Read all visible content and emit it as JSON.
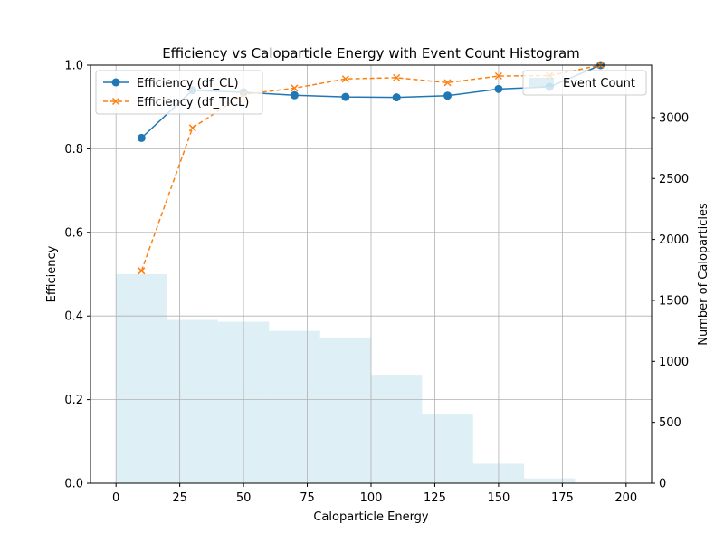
{
  "chart_data": {
    "type": "line",
    "title": "Efficiency vs Caloparticle Energy with Event Count Histogram",
    "xlabel": "Caloparticle Energy",
    "ylabel": "Efficiency",
    "y2label": "Number of Caloparticles",
    "xlim": [
      -10,
      210
    ],
    "ylim": [
      0,
      1.0
    ],
    "y2lim": [
      0,
      3430
    ],
    "grid": true,
    "x_ticks": [
      0,
      25,
      50,
      75,
      100,
      125,
      150,
      175,
      200
    ],
    "y_ticks": [
      0.0,
      0.2,
      0.4,
      0.6,
      0.8,
      1.0
    ],
    "y2_ticks": [
      0,
      500,
      1000,
      1500,
      2000,
      2500,
      3000
    ],
    "legend_left": "top-left",
    "legend_right": "top-right",
    "series": [
      {
        "name": "Efficiency (df_CL)",
        "color": "#1f77b4",
        "linestyle": "solid",
        "marker": "circle",
        "x": [
          10,
          30,
          50,
          70,
          90,
          110,
          130,
          150,
          170,
          190
        ],
        "values": [
          0.826,
          0.94,
          0.935,
          0.928,
          0.924,
          0.923,
          0.927,
          0.943,
          0.948,
          1.0
        ]
      },
      {
        "name": "Efficiency (df_TICL)",
        "color": "#ff7f0e",
        "linestyle": "dashed",
        "marker": "x",
        "x": [
          10,
          30,
          50,
          70,
          90,
          110,
          130,
          150,
          170,
          190
        ],
        "values": [
          0.508,
          0.85,
          0.93,
          0.945,
          0.967,
          0.97,
          0.958,
          0.974,
          0.975,
          1.0
        ]
      }
    ],
    "histogram": {
      "name": "Event Count",
      "color": "#add8e6",
      "bin_edges": [
        0,
        20,
        40,
        60,
        80,
        100,
        120,
        140,
        160,
        180,
        200
      ],
      "counts": [
        1715,
        1340,
        1325,
        1250,
        1190,
        890,
        570,
        160,
        40,
        5
      ]
    }
  }
}
